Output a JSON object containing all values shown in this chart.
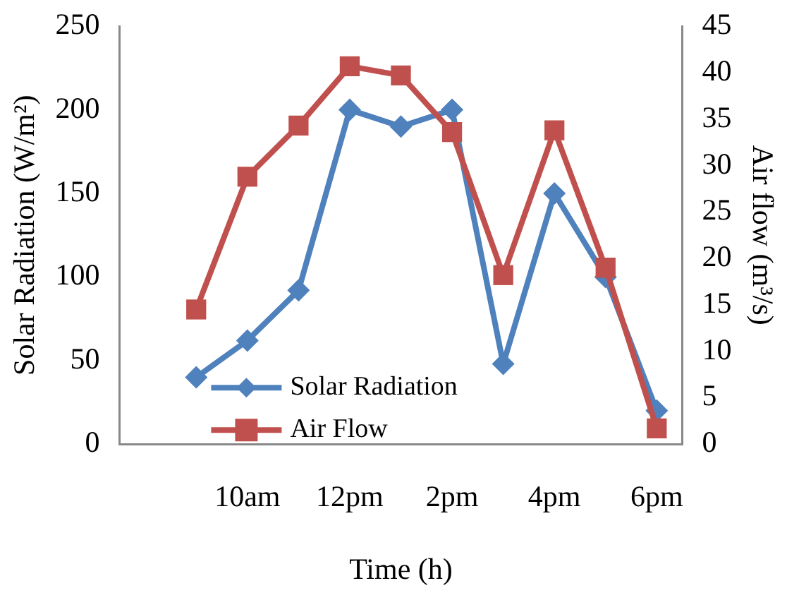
{
  "chart_data": {
    "type": "line",
    "xlabel": "Time (h)",
    "ylabel": "Solar Radiation (W/m²)",
    "y2label": "Air flow (m³/s)",
    "categories": [
      null,
      null,
      "10am",
      null,
      "12pm",
      null,
      "2pm",
      null,
      "4pm",
      null,
      "6pm"
    ],
    "series": [
      {
        "name": "Solar Radiation",
        "color": "#4f81bd",
        "marker": "diamond",
        "values": [
          null,
          40,
          62,
          92,
          200,
          190,
          200,
          48,
          150,
          100,
          20
        ]
      },
      {
        "name": "Air Flow",
        "color": "#c0504d",
        "marker": "square",
        "axis": "y2",
        "values": [
          null,
          14.5,
          28.8,
          34.3,
          40.7,
          39.7,
          33.6,
          18.2,
          33.8,
          19,
          1.7
        ]
      }
    ],
    "ylim": [
      0,
      250
    ],
    "yticks": [
      0,
      50,
      100,
      150,
      200,
      250
    ],
    "y2lim": [
      0,
      45
    ],
    "y2ticks": [
      0,
      5,
      10,
      15,
      20,
      25,
      30,
      35,
      40,
      45
    ],
    "grid": false,
    "legend": "bottom left",
    "line_style": "solid"
  }
}
